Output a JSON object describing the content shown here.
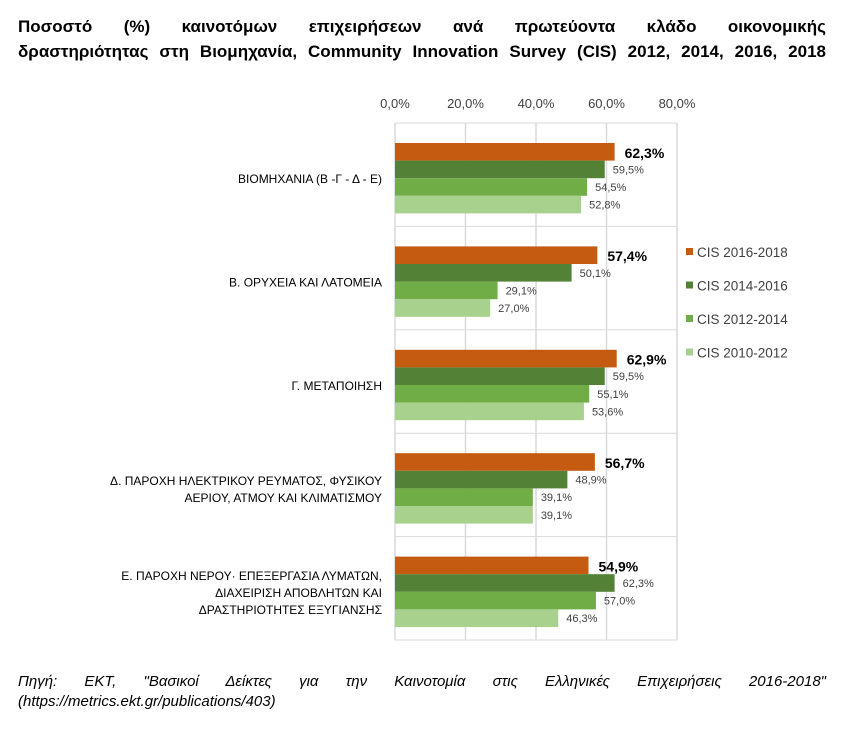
{
  "title_lines": [
    "Ποσοστό (%) καινοτόμων επιχειρήσεων ανά πρωτεύοντα κλάδο οικονομικής",
    "δραστηριότητας στη Βιομηχανία, Community Innovation Survey (CIS) 2012, 2014, 2016, 2018"
  ],
  "source_lines": [
    "Πηγή: ΕΚΤ, \"Βασικοί Δείκτες για την Καινοτομία στις Ελληνικές Επιχειρήσεις 2016-2018\"",
    "(https://metrics.ekt.gr/publications/403)"
  ],
  "chart_data": {
    "type": "bar",
    "orientation": "horizontal",
    "xlim": [
      0,
      80
    ],
    "xticks": [
      "0,0%",
      "20,0%",
      "40,0%",
      "60,0%",
      "80,0%"
    ],
    "x_axis_position": "top",
    "grid": true,
    "legend_placement": "right",
    "categories": [
      [
        "ΒΙΟΜΗΧΑΝΙΑ (Β -Γ - Δ - Ε)"
      ],
      [
        "Β. ΟΡΥΧΕΙΑ ΚΑΙ ΛΑΤΟΜΕΙΑ"
      ],
      [
        "Γ. ΜΕΤΑΠΟΙΗΣΗ"
      ],
      [
        "Δ. ΠΑΡΟΧΗ ΗΛΕΚΤΡΙΚΟΥ ΡΕΥΜΑΤΟΣ, ΦΥΣΙΚΟΥ",
        "ΑΕΡΙΟΥ, ΑΤΜΟΥ ΚΑΙ ΚΛΙΜΑΤΙΣΜΟΥ"
      ],
      [
        "Ε. ΠΑΡΟΧΗ ΝΕΡΟΥ· ΕΠΕΞΕΡΓΑΣΙΑ ΛΥΜΑΤΩΝ,",
        "ΔΙΑΧΕΙΡΙΣΗ ΑΠΟΒΛΗΤΩΝ ΚΑΙ",
        "ΔΡΑΣΤΗΡΙΟΤΗΤΕΣ ΕΞΥΓΙΑΝΣΗΣ"
      ]
    ],
    "series": [
      {
        "name": "CIS 2016-2018",
        "color": "#C55A11",
        "values": [
          62.3,
          57.4,
          62.9,
          56.7,
          54.9
        ],
        "labels": [
          "62,3%",
          "57,4%",
          "62,9%",
          "56,7%",
          "54,9%"
        ],
        "label_bold": true
      },
      {
        "name": "CIS 2014-2016",
        "color": "#538135",
        "values": [
          59.5,
          50.1,
          59.5,
          48.9,
          62.3
        ],
        "labels": [
          "59,5%",
          "50,1%",
          "59,5%",
          "48,9%",
          "62,3%"
        ]
      },
      {
        "name": "CIS 2012-2014",
        "color": "#70AD47",
        "values": [
          54.5,
          29.1,
          55.1,
          39.1,
          57.0
        ],
        "labels": [
          "54,5%",
          "29,1%",
          "55,1%",
          "39,1%",
          "57,0%"
        ]
      },
      {
        "name": "CIS 2010-2012",
        "color": "#A9D18E",
        "values": [
          52.8,
          27.0,
          53.6,
          39.1,
          46.3
        ],
        "labels": [
          "52,8%",
          "27,0%",
          "53,6%",
          "39,1%",
          "46,3%"
        ]
      }
    ]
  }
}
